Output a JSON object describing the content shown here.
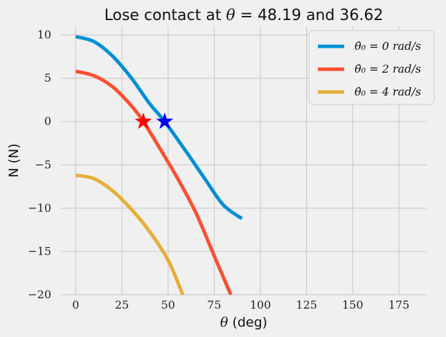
{
  "chart_data": {
    "type": "line",
    "title_prefix": "Lose contact at ",
    "title_symbol": "θ",
    "title_suffix": " = 48.19 and 36.62",
    "xlabel_symbol": "θ",
    "xlabel_suffix": " (deg)",
    "ylabel": "N (N)",
    "xlim": [
      -8,
      190
    ],
    "ylim": [
      -20,
      11
    ],
    "xticks": [
      0,
      25,
      50,
      75,
      100,
      125,
      150,
      175
    ],
    "yticks": [
      10,
      5,
      0,
      -5,
      -10,
      -15,
      -20
    ],
    "ytick_labels": [
      "10",
      "5",
      "0",
      "−5",
      "−10",
      "−15",
      "−20"
    ],
    "grid": true,
    "legend_position": "top-right",
    "series": [
      {
        "name": "θ̇₀ = 0 rad/s",
        "color": "#008fd5",
        "x": [
          0,
          10,
          20,
          30,
          40,
          48.19,
          60,
          70,
          80,
          90
        ],
        "y": [
          9.81,
          9.22,
          7.55,
          5.07,
          2.08,
          0,
          -3.53,
          -6.63,
          -9.64,
          -11.2
        ]
      },
      {
        "name": "θ̇₀ = 2 rad/s",
        "color": "#fc4f30",
        "x": [
          0,
          10,
          20,
          30,
          36.62,
          45,
          55,
          65,
          75,
          84
        ],
        "y": [
          5.81,
          5.28,
          4.01,
          1.86,
          0,
          -2.9,
          -6.5,
          -10.5,
          -15.5,
          -20
        ]
      },
      {
        "name": "θ̇₀ = 4 rad/s",
        "color": "#e5ae38",
        "x": [
          0,
          10,
          20,
          30,
          40,
          50,
          58
        ],
        "y": [
          -6.19,
          -6.6,
          -8.0,
          -10.1,
          -12.7,
          -16.0,
          -20
        ]
      }
    ],
    "markers": [
      {
        "x": 36.62,
        "y": 0,
        "color": "#ff0000",
        "shape": "star"
      },
      {
        "x": 48.19,
        "y": 0,
        "color": "#0000ff",
        "shape": "star"
      }
    ]
  }
}
